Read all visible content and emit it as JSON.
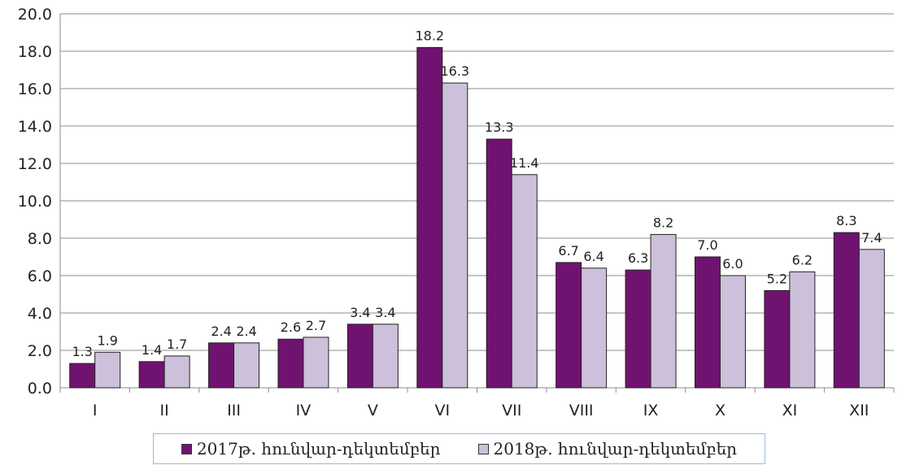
{
  "chart_data": {
    "type": "bar",
    "categories": [
      "I",
      "II",
      "III",
      "IV",
      "V",
      "VI",
      "VII",
      "VIII",
      "IX",
      "X",
      "XI",
      "XII"
    ],
    "series": [
      {
        "name": "2017թ. հունվար-դեկտեմբեր",
        "color": "#701370",
        "values": [
          1.3,
          1.4,
          2.4,
          2.6,
          3.4,
          18.2,
          13.3,
          6.7,
          6.3,
          7.0,
          5.2,
          8.3
        ],
        "labels": [
          "1.3",
          "1.4",
          "2.4",
          "2.6",
          "3.4",
          "18.2",
          "13.3",
          "6.7",
          "6.3",
          "7.0",
          "5.2",
          "8.3"
        ]
      },
      {
        "name": "2018թ. հունվար-դեկտեմբեր",
        "color": "#ccc0da",
        "values": [
          1.9,
          1.7,
          2.4,
          2.7,
          3.4,
          16.3,
          11.4,
          6.4,
          8.2,
          6.0,
          6.2,
          7.4
        ],
        "labels": [
          "1.9",
          "1.7",
          "2.4",
          "2.7",
          "3.4",
          "16.3",
          "11.4",
          "6.4",
          "8.2",
          "6.0",
          "6.2",
          "7.4"
        ]
      }
    ],
    "yticks": [
      "0.0",
      "2.0",
      "4.0",
      "6.0",
      "8.0",
      "10.0",
      "12.0",
      "14.0",
      "16.0",
      "18.0",
      "20.0"
    ],
    "ylim": [
      0,
      20
    ],
    "grid": true,
    "legend_position": "bottom",
    "title": "",
    "xlabel": "",
    "ylabel": ""
  }
}
